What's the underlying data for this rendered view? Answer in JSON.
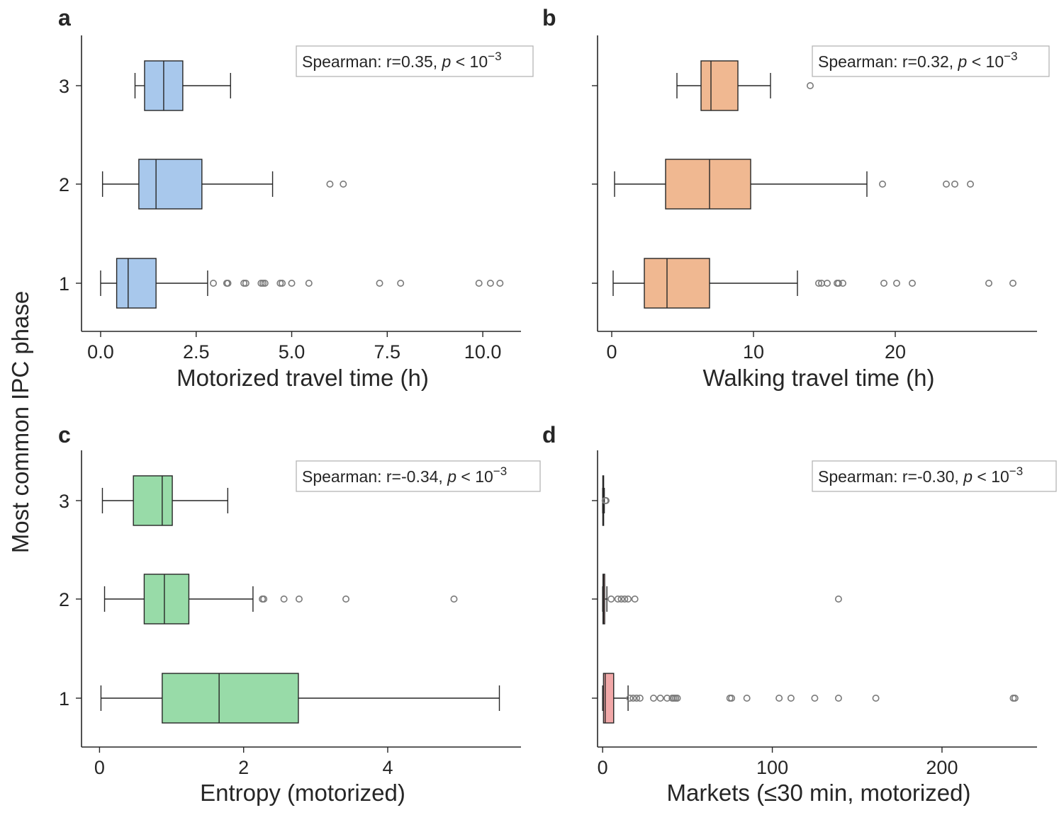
{
  "figure": {
    "ylabel": "Most common IPC phase"
  },
  "chart_data": [
    {
      "type": "box",
      "panel_letter": "a",
      "xlabel": "Motorized travel time (h)",
      "ylabel": "Most common IPC phase",
      "categories": [
        "1",
        "2",
        "3"
      ],
      "xlim": [
        -0.5,
        11.0
      ],
      "xticks": [
        0.0,
        2.5,
        5.0,
        7.5,
        10.0
      ],
      "xtick_labels": [
        "0.0",
        "2.5",
        "5.0",
        "7.5",
        "10.0"
      ],
      "color": "#a8c8ec",
      "annotation_text": "Spearman: r=0.35, ",
      "annotation_p": "p",
      "annotation_rel": " < 10",
      "annotation_exp": "−3",
      "boxes": [
        {
          "phase": "1",
          "whisker_low": 0.0,
          "q1": 0.42,
          "median": 0.72,
          "q3": 1.45,
          "whisker_high": 2.8,
          "outliers": [
            2.95,
            3.3,
            3.33,
            3.75,
            3.8,
            4.2,
            4.25,
            4.3,
            4.7,
            4.75,
            5.0,
            5.45,
            7.3,
            7.85,
            9.9,
            10.2,
            10.45
          ]
        },
        {
          "phase": "2",
          "whisker_low": 0.05,
          "q1": 1.0,
          "median": 1.45,
          "q3": 2.65,
          "whisker_high": 4.5,
          "outliers": [
            6.0,
            6.35
          ]
        },
        {
          "phase": "3",
          "whisker_low": 0.9,
          "q1": 1.15,
          "median": 1.65,
          "q3": 2.15,
          "whisker_high": 3.4,
          "outliers": []
        }
      ]
    },
    {
      "type": "box",
      "panel_letter": "b",
      "xlabel": "Walking travel time (h)",
      "ylabel": "",
      "categories": [
        "1",
        "2",
        "3"
      ],
      "xlim": [
        -1.0,
        30.0
      ],
      "xticks": [
        0,
        10,
        20
      ],
      "xtick_labels": [
        "0",
        "10",
        "20"
      ],
      "color": "#f0b891",
      "annotation_text": "Spearman: r=0.32, ",
      "annotation_p": "p",
      "annotation_rel": " < 10",
      "annotation_exp": "−3",
      "boxes": [
        {
          "phase": "1",
          "whisker_low": 0.1,
          "q1": 2.3,
          "median": 3.9,
          "q3": 6.9,
          "whisker_high": 13.1,
          "outliers": [
            14.6,
            14.8,
            15.2,
            15.9,
            16.0,
            16.3,
            19.2,
            20.1,
            21.2,
            26.6,
            28.3
          ]
        },
        {
          "phase": "2",
          "whisker_low": 0.2,
          "q1": 3.8,
          "median": 6.9,
          "q3": 9.8,
          "whisker_high": 18.0,
          "outliers": [
            19.1,
            23.6,
            24.2,
            25.3
          ]
        },
        {
          "phase": "3",
          "whisker_low": 4.6,
          "q1": 6.3,
          "median": 7.0,
          "q3": 8.9,
          "whisker_high": 11.2,
          "outliers": [
            14.0
          ]
        }
      ]
    },
    {
      "type": "box",
      "panel_letter": "c",
      "xlabel": "Entropy (motorized)",
      "ylabel": "Most common IPC phase",
      "categories": [
        "1",
        "2",
        "3"
      ],
      "xlim": [
        -0.25,
        5.85
      ],
      "xticks": [
        0,
        2,
        4
      ],
      "xtick_labels": [
        "0",
        "2",
        "4"
      ],
      "color": "#98dba8",
      "annotation_text": "Spearman: r=-0.34, ",
      "annotation_p": "p",
      "annotation_rel": " < 10",
      "annotation_exp": "−3",
      "boxes": [
        {
          "phase": "1",
          "whisker_low": 0.02,
          "q1": 0.87,
          "median": 1.66,
          "q3": 2.76,
          "whisker_high": 5.55,
          "outliers": []
        },
        {
          "phase": "2",
          "whisker_low": 0.07,
          "q1": 0.62,
          "median": 0.9,
          "q3": 1.24,
          "whisker_high": 2.13,
          "outliers": [
            2.26,
            2.28,
            2.56,
            2.77,
            3.42,
            4.92
          ]
        },
        {
          "phase": "3",
          "whisker_low": 0.04,
          "q1": 0.47,
          "median": 0.87,
          "q3": 1.01,
          "whisker_high": 1.78,
          "outliers": []
        }
      ]
    },
    {
      "type": "box",
      "panel_letter": "d",
      "xlabel": "Markets (≤30 min, motorized)",
      "ylabel": "",
      "categories": [
        "1",
        "2",
        "3"
      ],
      "xlim": [
        -3,
        256
      ],
      "xticks": [
        0,
        100,
        200
      ],
      "xtick_labels": [
        "0",
        "100",
        "200"
      ],
      "color": "#f1a8a8",
      "annotation_text": "Spearman: r=-0.30, ",
      "annotation_p": "p",
      "annotation_rel": " < 10",
      "annotation_exp": "−3",
      "boxes": [
        {
          "phase": "1",
          "whisker_low": 0,
          "q1": 0.5,
          "median": 1.5,
          "q3": 6.5,
          "whisker_high": 15,
          "outliers": [
            16,
            18,
            20,
            22,
            30,
            34,
            38,
            41,
            42,
            43,
            44,
            75,
            76,
            85,
            104,
            111,
            125,
            139,
            161,
            242,
            243
          ]
        },
        {
          "phase": "2",
          "whisker_low": 0,
          "q1": 0.2,
          "median": 0.5,
          "q3": 1.2,
          "whisker_high": 2.5,
          "outliers": [
            5,
            9,
            11,
            13,
            15,
            19,
            139
          ]
        },
        {
          "phase": "3",
          "whisker_low": 0,
          "q1": 0.1,
          "median": 0.3,
          "q3": 0.6,
          "whisker_high": 1.0,
          "outliers": [
            1.5,
            2.0
          ]
        }
      ]
    }
  ]
}
